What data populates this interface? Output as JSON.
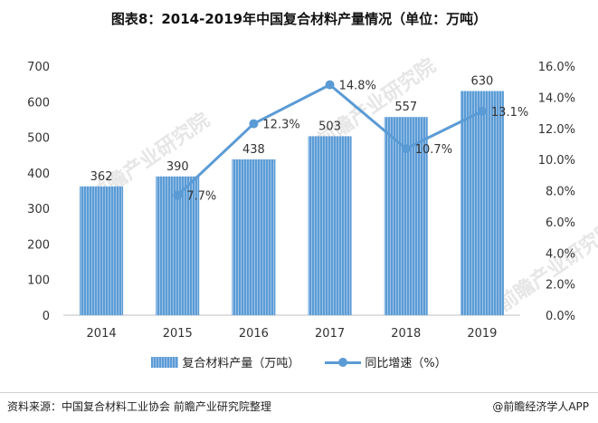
{
  "title": "图表8：2014-2019年中国复合材料产量情况（单位：万吨）",
  "source": "资料来源：中国复合材料工业协会  前瞻产业研究院整理",
  "brand": "@前瞻经济学人APP",
  "watermark": "前瞻产业研究院",
  "colors": {
    "bar": "#5b9bd5",
    "bar_light": "#9cc3e8",
    "line": "#5b9bd5",
    "axis": "#bfbfbf"
  },
  "chart_data": {
    "type": "bar",
    "categories": [
      "2014",
      "2015",
      "2016",
      "2017",
      "2018",
      "2019"
    ],
    "series": [
      {
        "name": "复合材料产量（万吨）",
        "type": "bar",
        "axis": "left",
        "values": [
          362,
          390,
          438,
          503,
          557,
          630
        ]
      },
      {
        "name": "同比增速（%）",
        "type": "line",
        "axis": "right",
        "values": [
          null,
          7.7,
          12.3,
          14.8,
          10.7,
          13.1
        ]
      }
    ],
    "value_labels": [
      "362",
      "390",
      "438",
      "503",
      "557",
      "630"
    ],
    "rate_labels": [
      "",
      "7.7%",
      "12.3%",
      "14.8%",
      "10.7%",
      "13.1%"
    ],
    "y_left": {
      "min": 0,
      "max": 700,
      "ticks": [
        "0",
        "100",
        "200",
        "300",
        "400",
        "500",
        "600",
        "700"
      ]
    },
    "y_right": {
      "min": 0,
      "max": 16,
      "ticks": [
        "0.0%",
        "2.0%",
        "4.0%",
        "6.0%",
        "8.0%",
        "10.0%",
        "12.0%",
        "14.0%",
        "16.0%"
      ]
    },
    "legend_position": "bottom",
    "grid": false
  }
}
